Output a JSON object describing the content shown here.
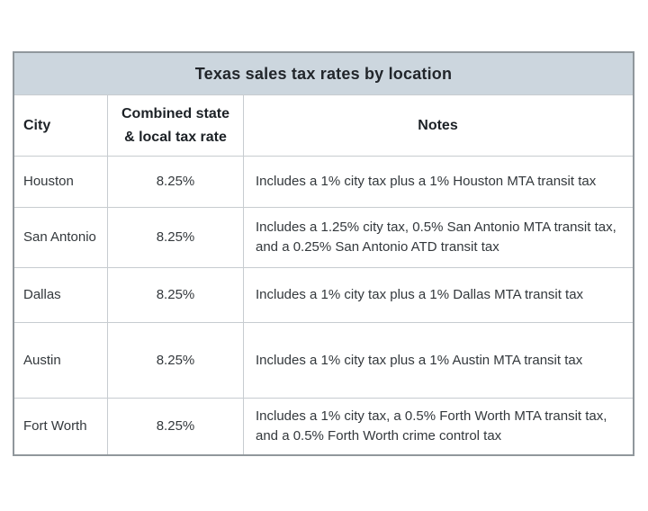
{
  "table": {
    "title": "Texas sales tax rates by location",
    "columns": [
      {
        "label": "City"
      },
      {
        "label": "Combined state & local tax rate"
      },
      {
        "label": "Notes"
      }
    ],
    "rows": [
      {
        "city": "Houston",
        "rate": "8.25%",
        "notes": "Includes a 1% city tax plus a 1% Houston MTA transit tax"
      },
      {
        "city": "San Antonio",
        "rate": "8.25%",
        "notes": "Includes a 1.25% city tax, 0.5% San Antonio MTA transit tax, and a 0.25% San Antonio ATD transit tax"
      },
      {
        "city": "Dallas",
        "rate": "8.25%",
        "notes": "Includes a 1% city tax plus a 1% Dallas MTA transit tax"
      },
      {
        "city": "Austin",
        "rate": "8.25%",
        "notes": "Includes a 1% city tax plus a 1% Austin MTA transit tax"
      },
      {
        "city": "Fort Worth",
        "rate": "8.25%",
        "notes": "Includes a 1% city tax, a 0.5% Forth Worth MTA transit tax, and a 0.5% Forth Worth crime control tax"
      }
    ],
    "colors": {
      "title_bg": "#ccd6de",
      "border_outer": "#90979c",
      "border_inner": "#c7ccd0",
      "text": "#33383c"
    }
  }
}
